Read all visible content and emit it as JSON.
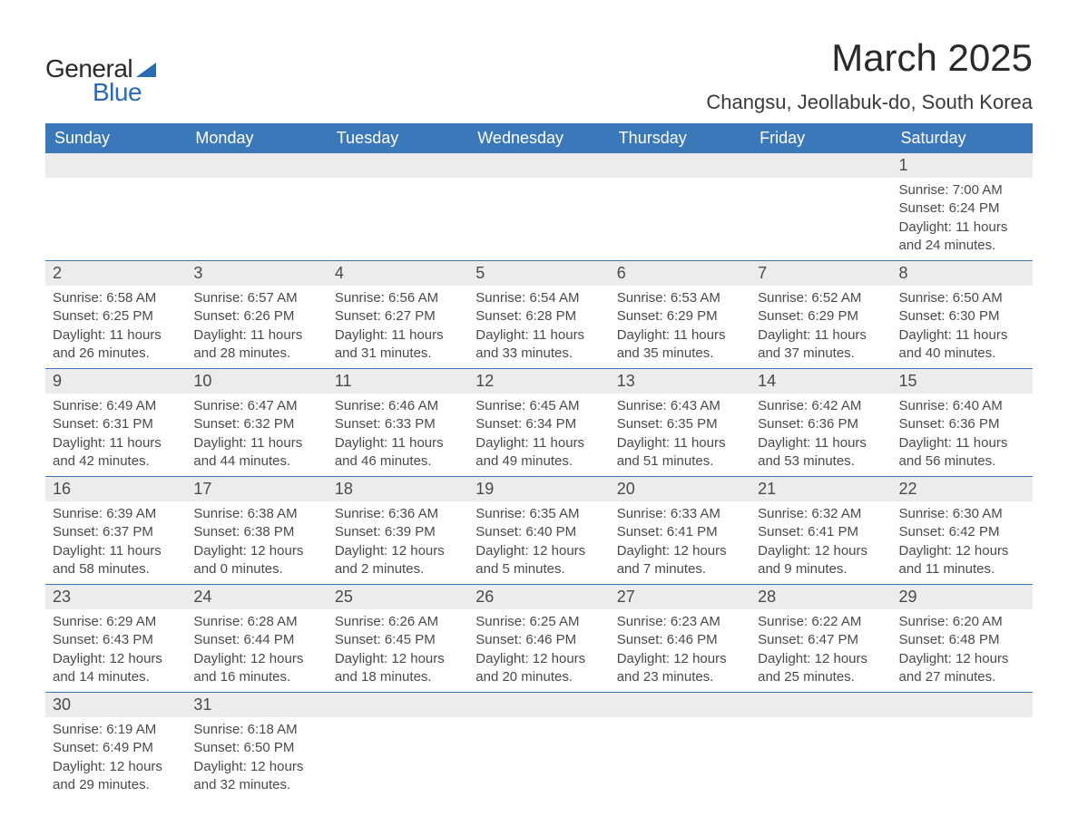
{
  "logo": {
    "text1": "General",
    "text2": "Blue",
    "tri_color": "#2a6bb3"
  },
  "title": "March 2025",
  "location": "Changsu, Jeollabuk-do, South Korea",
  "header_bg": "#3a78b9",
  "header_fg": "#ffffff",
  "daynum_bg": "#ececec",
  "text_color": "#4a4a4a",
  "border_color": "#3a78b9",
  "font_family": "Arial, Helvetica, sans-serif",
  "title_fontsize": 42,
  "location_fontsize": 22,
  "header_fontsize": 18,
  "daynum_fontsize": 18,
  "body_fontsize": 15,
  "columns": [
    "Sunday",
    "Monday",
    "Tuesday",
    "Wednesday",
    "Thursday",
    "Friday",
    "Saturday"
  ],
  "weeks": [
    [
      null,
      null,
      null,
      null,
      null,
      null,
      {
        "n": "1",
        "sr": "7:00 AM",
        "ss": "6:24 PM",
        "dl": "11 hours and 24 minutes."
      }
    ],
    [
      {
        "n": "2",
        "sr": "6:58 AM",
        "ss": "6:25 PM",
        "dl": "11 hours and 26 minutes."
      },
      {
        "n": "3",
        "sr": "6:57 AM",
        "ss": "6:26 PM",
        "dl": "11 hours and 28 minutes."
      },
      {
        "n": "4",
        "sr": "6:56 AM",
        "ss": "6:27 PM",
        "dl": "11 hours and 31 minutes."
      },
      {
        "n": "5",
        "sr": "6:54 AM",
        "ss": "6:28 PM",
        "dl": "11 hours and 33 minutes."
      },
      {
        "n": "6",
        "sr": "6:53 AM",
        "ss": "6:29 PM",
        "dl": "11 hours and 35 minutes."
      },
      {
        "n": "7",
        "sr": "6:52 AM",
        "ss": "6:29 PM",
        "dl": "11 hours and 37 minutes."
      },
      {
        "n": "8",
        "sr": "6:50 AM",
        "ss": "6:30 PM",
        "dl": "11 hours and 40 minutes."
      }
    ],
    [
      {
        "n": "9",
        "sr": "6:49 AM",
        "ss": "6:31 PM",
        "dl": "11 hours and 42 minutes."
      },
      {
        "n": "10",
        "sr": "6:47 AM",
        "ss": "6:32 PM",
        "dl": "11 hours and 44 minutes."
      },
      {
        "n": "11",
        "sr": "6:46 AM",
        "ss": "6:33 PM",
        "dl": "11 hours and 46 minutes."
      },
      {
        "n": "12",
        "sr": "6:45 AM",
        "ss": "6:34 PM",
        "dl": "11 hours and 49 minutes."
      },
      {
        "n": "13",
        "sr": "6:43 AM",
        "ss": "6:35 PM",
        "dl": "11 hours and 51 minutes."
      },
      {
        "n": "14",
        "sr": "6:42 AM",
        "ss": "6:36 PM",
        "dl": "11 hours and 53 minutes."
      },
      {
        "n": "15",
        "sr": "6:40 AM",
        "ss": "6:36 PM",
        "dl": "11 hours and 56 minutes."
      }
    ],
    [
      {
        "n": "16",
        "sr": "6:39 AM",
        "ss": "6:37 PM",
        "dl": "11 hours and 58 minutes."
      },
      {
        "n": "17",
        "sr": "6:38 AM",
        "ss": "6:38 PM",
        "dl": "12 hours and 0 minutes."
      },
      {
        "n": "18",
        "sr": "6:36 AM",
        "ss": "6:39 PM",
        "dl": "12 hours and 2 minutes."
      },
      {
        "n": "19",
        "sr": "6:35 AM",
        "ss": "6:40 PM",
        "dl": "12 hours and 5 minutes."
      },
      {
        "n": "20",
        "sr": "6:33 AM",
        "ss": "6:41 PM",
        "dl": "12 hours and 7 minutes."
      },
      {
        "n": "21",
        "sr": "6:32 AM",
        "ss": "6:41 PM",
        "dl": "12 hours and 9 minutes."
      },
      {
        "n": "22",
        "sr": "6:30 AM",
        "ss": "6:42 PM",
        "dl": "12 hours and 11 minutes."
      }
    ],
    [
      {
        "n": "23",
        "sr": "6:29 AM",
        "ss": "6:43 PM",
        "dl": "12 hours and 14 minutes."
      },
      {
        "n": "24",
        "sr": "6:28 AM",
        "ss": "6:44 PM",
        "dl": "12 hours and 16 minutes."
      },
      {
        "n": "25",
        "sr": "6:26 AM",
        "ss": "6:45 PM",
        "dl": "12 hours and 18 minutes."
      },
      {
        "n": "26",
        "sr": "6:25 AM",
        "ss": "6:46 PM",
        "dl": "12 hours and 20 minutes."
      },
      {
        "n": "27",
        "sr": "6:23 AM",
        "ss": "6:46 PM",
        "dl": "12 hours and 23 minutes."
      },
      {
        "n": "28",
        "sr": "6:22 AM",
        "ss": "6:47 PM",
        "dl": "12 hours and 25 minutes."
      },
      {
        "n": "29",
        "sr": "6:20 AM",
        "ss": "6:48 PM",
        "dl": "12 hours and 27 minutes."
      }
    ],
    [
      {
        "n": "30",
        "sr": "6:19 AM",
        "ss": "6:49 PM",
        "dl": "12 hours and 29 minutes."
      },
      {
        "n": "31",
        "sr": "6:18 AM",
        "ss": "6:50 PM",
        "dl": "12 hours and 32 minutes."
      },
      null,
      null,
      null,
      null,
      null
    ]
  ],
  "labels": {
    "sunrise": "Sunrise:",
    "sunset": "Sunset:",
    "daylight": "Daylight:"
  }
}
